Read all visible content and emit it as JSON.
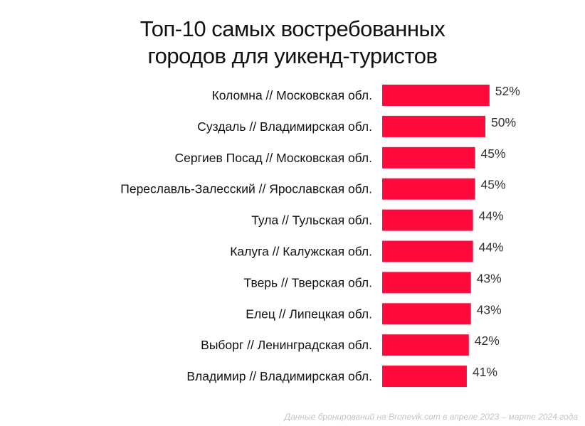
{
  "header": {
    "title_line1": "Топ-10 самых востребованных",
    "title_line2": "городов для уикенд-туристов"
  },
  "footnote": "Данные бронирований на Bronevik.com в апреле 2023 – марте 2024 года",
  "chart_data": {
    "type": "bar",
    "orientation": "horizontal",
    "title": "Топ-10 самых востребованных городов для уикенд-туристов",
    "categories": [
      "Коломна // Московская обл.",
      "Суздаль // Владимирская обл.",
      "Сергиев Посад // Московская обл.",
      "Переславль-Залесский // Ярославская обл.",
      "Тула // Тульская обл.",
      "Калуга // Калужская обл.",
      "Тверь // Тверская обл.",
      "Елец // Липецкая обл.",
      "Выборг // Ленинградская обл.",
      "Владимир // Владимирская обл."
    ],
    "values": [
      52,
      50,
      45,
      45,
      44,
      44,
      43,
      43,
      42,
      41
    ],
    "value_labels": [
      "52%",
      "50%",
      "45%",
      "45%",
      "44%",
      "44%",
      "43%",
      "43%",
      "42%",
      "41%"
    ],
    "bar_color": "#ff0a3c",
    "xlim": [
      0,
      100
    ],
    "grid": false,
    "legend": "none"
  }
}
